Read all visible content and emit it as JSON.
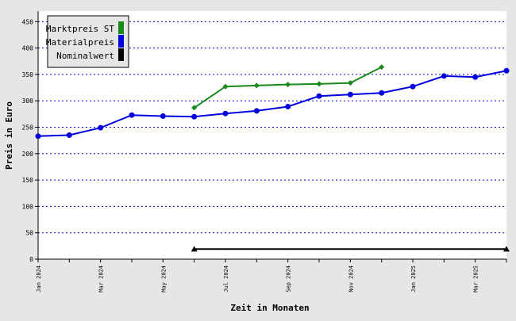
{
  "chart_data": {
    "type": "line",
    "xlabel": "Zeit in Monaten",
    "ylabel": "Preis in Euro",
    "ylim": [
      0,
      470
    ],
    "yticks": [
      0,
      50,
      100,
      150,
      200,
      250,
      300,
      350,
      400,
      450
    ],
    "x_months": [
      "2024-01",
      "2024-02",
      "2024-03",
      "2024-04",
      "2024-05",
      "2024-06",
      "2024-07",
      "2024-08",
      "2024-09",
      "2024-10",
      "2024-11",
      "2024-12",
      "2025-01",
      "2025-02",
      "2025-03",
      "2025-04"
    ],
    "x_tick_labels": [
      {
        "month": "2024-01",
        "label": "Jan 2024"
      },
      {
        "month": "2024-03",
        "label": "Mar 2024"
      },
      {
        "month": "2024-05",
        "label": "May 2024"
      },
      {
        "month": "2024-07",
        "label": "Jul 2024"
      },
      {
        "month": "2024-09",
        "label": "Sep 2024"
      },
      {
        "month": "2024-11",
        "label": "Nov 2024"
      },
      {
        "month": "2025-01",
        "label": "Jan 2025"
      },
      {
        "month": "2025-03",
        "label": "Mar 2025"
      }
    ],
    "grid": {
      "horizontal": true,
      "style": "dotted",
      "color": "#0000cc"
    },
    "legend_position": "top-left",
    "series": [
      {
        "name": "Marktpreis ST",
        "color": "#1a8a1a",
        "marker": "diamond",
        "points": [
          [
            "2024-06",
            287
          ],
          [
            "2024-07",
            327
          ],
          [
            "2024-08",
            329
          ],
          [
            "2024-09",
            331
          ],
          [
            "2024-10",
            332
          ],
          [
            "2024-11",
            334
          ],
          [
            "2024-12",
            364
          ]
        ]
      },
      {
        "name": "Materialpreis",
        "color": "#0000dd",
        "marker": "circle",
        "points": [
          [
            "2024-01",
            233
          ],
          [
            "2024-02",
            235
          ],
          [
            "2024-03",
            249
          ],
          [
            "2024-04",
            273
          ],
          [
            "2024-05",
            271
          ],
          [
            "2024-06",
            270
          ],
          [
            "2024-07",
            276
          ],
          [
            "2024-08",
            281
          ],
          [
            "2024-09",
            289
          ],
          [
            "2024-10",
            309
          ],
          [
            "2024-11",
            312
          ],
          [
            "2024-12",
            315
          ],
          [
            "2025-01",
            327
          ],
          [
            "2025-02",
            347
          ],
          [
            "2025-03",
            345
          ],
          [
            "2025-04",
            357
          ]
        ]
      },
      {
        "name": "Nominalwert",
        "color": "#000000",
        "marker": "triangle-ends",
        "points": [
          [
            "2024-06",
            19
          ],
          [
            "2025-04",
            19
          ]
        ]
      }
    ]
  }
}
